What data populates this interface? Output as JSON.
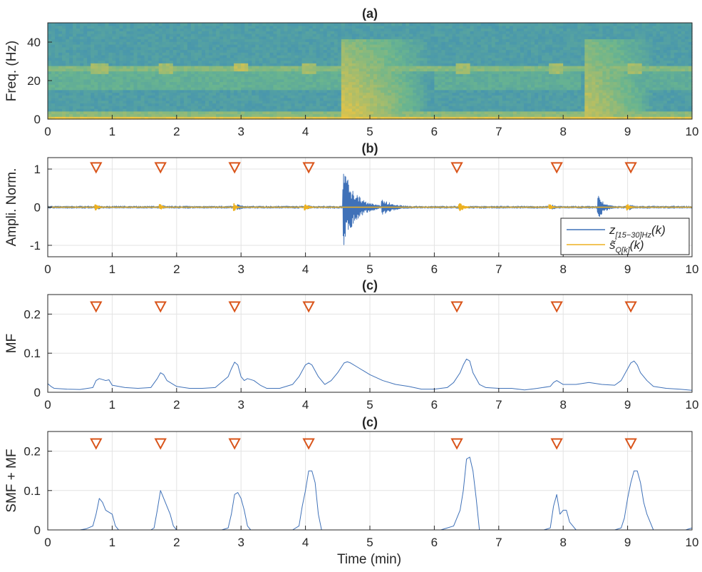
{
  "figure": {
    "x_label": "Time (min)"
  },
  "chart_data": [
    {
      "type": "heatmap",
      "panel": "a",
      "title": "(a)",
      "ylabel": "Freq. (Hz)",
      "xlim": [
        0,
        10
      ],
      "ylim": [
        0,
        50
      ],
      "xticks": [
        0,
        1,
        2,
        3,
        4,
        5,
        6,
        7,
        8,
        9,
        10
      ],
      "yticks": [
        0,
        20,
        40
      ],
      "colors": {
        "low": "#2f7fc4",
        "mid": "#6ab58f",
        "high": "#f2c640"
      },
      "background_level": 0.28,
      "bands": [
        {
          "f0": 0,
          "f1": 2,
          "t0": 0,
          "t1": 10,
          "level": 0.95
        },
        {
          "f0": 2,
          "f1": 4,
          "t0": 0,
          "t1": 10,
          "level": 0.62
        },
        {
          "f0": 15,
          "f1": 28,
          "t0": 0,
          "t1": 4.6,
          "level": 0.45
        },
        {
          "f0": 15,
          "f1": 28,
          "t0": 6.0,
          "t1": 8.3,
          "level": 0.42
        },
        {
          "f0": 15,
          "f1": 28,
          "t0": 9.1,
          "t1": 10,
          "level": 0.42
        },
        {
          "f0": 24.5,
          "f1": 27.5,
          "t0": 0,
          "t1": 10,
          "level": 0.6
        }
      ],
      "events": [
        {
          "t0": 4.58,
          "t1": 5.9,
          "f_top": 42,
          "level": 0.95
        },
        {
          "t0": 8.35,
          "t1": 9.4,
          "f_top": 42,
          "level": 0.85
        }
      ],
      "blips": [
        {
          "t": 0.8,
          "f": 26,
          "level": 0.7
        },
        {
          "t": 1.85,
          "f": 26,
          "level": 0.7
        },
        {
          "t": 3.0,
          "f": 27,
          "level": 0.8
        },
        {
          "t": 4.05,
          "f": 26,
          "level": 0.7
        },
        {
          "t": 6.45,
          "f": 26,
          "level": 0.7
        },
        {
          "t": 7.9,
          "f": 26,
          "level": 0.7
        },
        {
          "t": 9.1,
          "f": 26,
          "level": 0.7
        }
      ]
    },
    {
      "type": "line",
      "panel": "b",
      "title": "(b)",
      "ylabel": "Ampli. Norm.",
      "xlim": [
        0,
        10
      ],
      "ylim": [
        -1.3,
        1.3
      ],
      "xticks": [
        0,
        1,
        2,
        3,
        4,
        5,
        6,
        7,
        8,
        9,
        10
      ],
      "yticks": [
        -1,
        0,
        1
      ],
      "grid": true,
      "marker_y": 1.05,
      "marker_color": "#d9541a",
      "markers_x": [
        0.75,
        1.75,
        2.9,
        4.05,
        6.35,
        7.9,
        9.05
      ],
      "legend": {
        "position": "bottom-right",
        "entries": [
          {
            "label": "z",
            "sub": "[15−30]Hz",
            "arg": "(k)",
            "color": "#3f71b8"
          },
          {
            "label": "s̃",
            "sub": "Q[k]",
            "arg": "(k)",
            "color": "#edb120"
          }
        ]
      },
      "series": [
        {
          "color": "#3f71b8",
          "noise": 0.02,
          "bursts": [
            {
              "t": 0.8,
              "amp": 0.05,
              "dur": 0.12
            },
            {
              "t": 1.8,
              "amp": 0.05,
              "dur": 0.12
            },
            {
              "t": 2.95,
              "amp": 0.08,
              "dur": 0.3
            },
            {
              "t": 4.05,
              "amp": 0.06,
              "dur": 0.15
            },
            {
              "t": 4.6,
              "amp": 1.0,
              "dur": 0.55
            },
            {
              "t": 5.2,
              "amp": 0.2,
              "dur": 0.6
            },
            {
              "t": 6.4,
              "amp": 0.07,
              "dur": 0.15
            },
            {
              "t": 7.85,
              "amp": 0.06,
              "dur": 0.2
            },
            {
              "t": 8.55,
              "amp": 0.3,
              "dur": 0.3
            },
            {
              "t": 9.05,
              "amp": 0.08,
              "dur": 0.15
            }
          ]
        },
        {
          "color": "#edb120",
          "bursts": [
            {
              "t": 0.75,
              "amp": 0.08,
              "dur": 0.1
            },
            {
              "t": 1.75,
              "amp": 0.07,
              "dur": 0.1
            },
            {
              "t": 2.9,
              "amp": 0.1,
              "dur": 0.08
            },
            {
              "t": 4.0,
              "amp": 0.09,
              "dur": 0.12
            },
            {
              "t": 6.4,
              "amp": 0.12,
              "dur": 0.15
            },
            {
              "t": 7.8,
              "amp": 0.07,
              "dur": 0.1
            },
            {
              "t": 9.0,
              "amp": 0.08,
              "dur": 0.12
            }
          ]
        }
      ]
    },
    {
      "type": "line",
      "panel": "c1",
      "title": "(c)",
      "ylabel": "MF",
      "xlim": [
        0,
        10
      ],
      "ylim": [
        0,
        0.25
      ],
      "xticks": [
        0,
        1,
        2,
        3,
        4,
        5,
        6,
        7,
        8,
        9,
        10
      ],
      "yticks": [
        0,
        0.1,
        0.2
      ],
      "grid": true,
      "marker_y": 0.22,
      "marker_color": "#d9541a",
      "markers_x": [
        0.75,
        1.75,
        2.9,
        4.05,
        6.35,
        7.9,
        9.05
      ],
      "series": [
        {
          "color": "#3f71b8",
          "x": [
            0,
            0.05,
            0.1,
            0.3,
            0.5,
            0.7,
            0.75,
            0.8,
            0.9,
            0.95,
            1.0,
            1.2,
            1.4,
            1.6,
            1.7,
            1.75,
            1.8,
            1.85,
            1.9,
            2.0,
            2.2,
            2.4,
            2.6,
            2.8,
            2.85,
            2.9,
            2.95,
            3.0,
            3.05,
            3.1,
            3.2,
            3.3,
            3.4,
            3.6,
            3.8,
            3.9,
            4.0,
            4.05,
            4.1,
            4.2,
            4.3,
            4.4,
            4.5,
            4.6,
            4.65,
            4.7,
            4.8,
            4.9,
            5.0,
            5.2,
            5.4,
            5.6,
            5.8,
            6.0,
            6.2,
            6.3,
            6.4,
            6.45,
            6.5,
            6.55,
            6.6,
            6.7,
            6.8,
            7.0,
            7.2,
            7.4,
            7.6,
            7.8,
            7.85,
            7.9,
            8.0,
            8.2,
            8.4,
            8.6,
            8.8,
            8.9,
            9.0,
            9.05,
            9.1,
            9.15,
            9.2,
            9.3,
            9.4,
            9.6,
            9.8,
            10.0
          ],
          "y": [
            0.022,
            0.015,
            0.01,
            0.008,
            0.007,
            0.012,
            0.03,
            0.035,
            0.03,
            0.032,
            0.018,
            0.012,
            0.01,
            0.012,
            0.035,
            0.05,
            0.045,
            0.03,
            0.025,
            0.015,
            0.01,
            0.01,
            0.012,
            0.04,
            0.06,
            0.077,
            0.07,
            0.04,
            0.03,
            0.035,
            0.03,
            0.018,
            0.01,
            0.01,
            0.02,
            0.04,
            0.07,
            0.075,
            0.07,
            0.04,
            0.02,
            0.03,
            0.05,
            0.075,
            0.078,
            0.075,
            0.065,
            0.055,
            0.045,
            0.03,
            0.02,
            0.015,
            0.008,
            0.008,
            0.012,
            0.025,
            0.05,
            0.07,
            0.085,
            0.08,
            0.05,
            0.02,
            0.012,
            0.01,
            0.01,
            0.006,
            0.01,
            0.015,
            0.025,
            0.03,
            0.02,
            0.02,
            0.025,
            0.02,
            0.018,
            0.03,
            0.06,
            0.075,
            0.08,
            0.07,
            0.05,
            0.03,
            0.015,
            0.01,
            0.008,
            0.005
          ]
        }
      ]
    },
    {
      "type": "line",
      "panel": "c2",
      "title": "(c)",
      "ylabel": "SMF + MF",
      "xlim": [
        0,
        10
      ],
      "ylim": [
        0,
        0.25
      ],
      "xticks": [
        0,
        1,
        2,
        3,
        4,
        5,
        6,
        7,
        8,
        9,
        10
      ],
      "yticks": [
        0,
        0.1,
        0.2
      ],
      "grid": true,
      "marker_y": 0.22,
      "marker_color": "#d9541a",
      "markers_x": [
        0.75,
        1.75,
        2.9,
        4.05,
        6.35,
        7.9,
        9.05
      ],
      "series": [
        {
          "color": "#3f71b8",
          "x": [
            0,
            0.5,
            0.6,
            0.7,
            0.75,
            0.8,
            0.85,
            0.9,
            0.95,
            1.0,
            1.05,
            1.1,
            1.6,
            1.65,
            1.7,
            1.75,
            1.8,
            1.85,
            1.9,
            1.95,
            2.0,
            2.7,
            2.8,
            2.85,
            2.9,
            2.95,
            3.0,
            3.05,
            3.1,
            3.15,
            3.8,
            3.9,
            3.95,
            4.0,
            4.05,
            4.1,
            4.15,
            4.2,
            4.25,
            6.1,
            6.2,
            6.3,
            6.4,
            6.45,
            6.5,
            6.55,
            6.6,
            6.65,
            6.7,
            7.7,
            7.8,
            7.85,
            7.9,
            7.95,
            8.0,
            8.05,
            8.1,
            8.15,
            8.2,
            8.8,
            8.9,
            8.95,
            9.0,
            9.05,
            9.1,
            9.15,
            9.2,
            9.25,
            9.3,
            9.35,
            9.4,
            9.9,
            10.0
          ],
          "y": [
            0,
            0,
            0.003,
            0.01,
            0.04,
            0.08,
            0.07,
            0.05,
            0.045,
            0.04,
            0.01,
            0,
            0,
            0.005,
            0.05,
            0.1,
            0.08,
            0.06,
            0.04,
            0.01,
            0,
            0,
            0.005,
            0.04,
            0.09,
            0.095,
            0.08,
            0.05,
            0.01,
            0,
            0,
            0.01,
            0.06,
            0.1,
            0.15,
            0.15,
            0.12,
            0.04,
            0,
            0,
            0.005,
            0.01,
            0.05,
            0.1,
            0.18,
            0.185,
            0.15,
            0.08,
            0,
            0,
            0.005,
            0.06,
            0.09,
            0.04,
            0.05,
            0.05,
            0.02,
            0.01,
            0,
            0,
            0.005,
            0.03,
            0.08,
            0.12,
            0.15,
            0.15,
            0.12,
            0.07,
            0.04,
            0.02,
            0,
            0,
            0.005
          ]
        }
      ]
    }
  ]
}
